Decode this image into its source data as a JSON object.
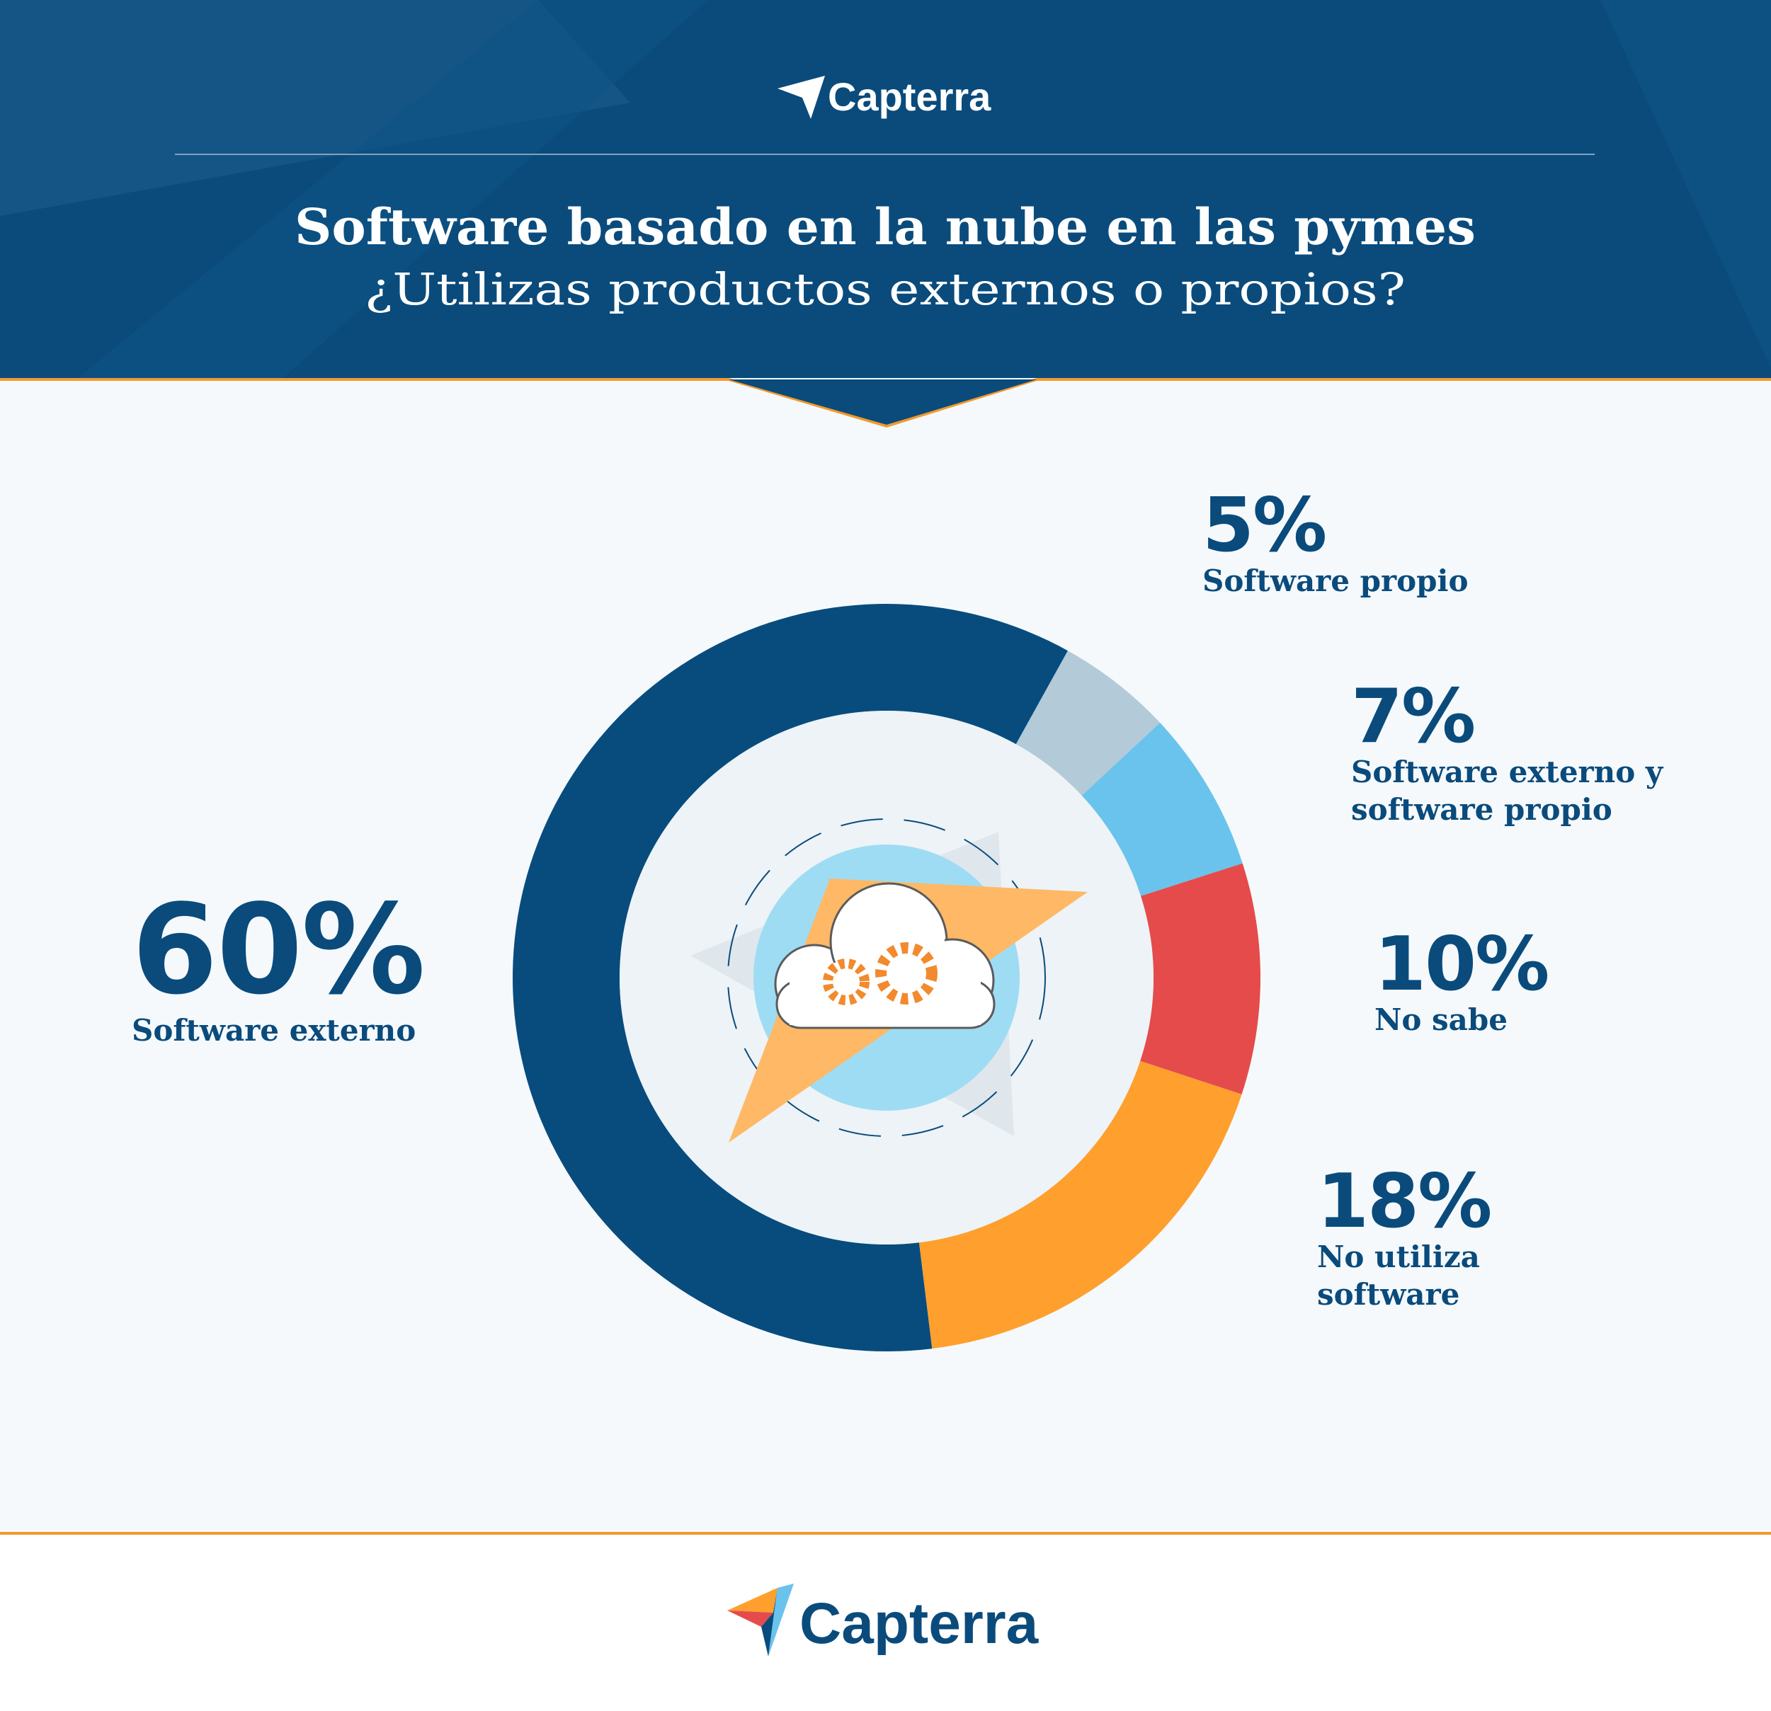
{
  "brand": "Capterra",
  "chart_data": {
    "type": "pie",
    "title": "Software basado en la nube en las pymes",
    "subtitle": "¿Utilizas productos externos o propios?",
    "categories": [
      "Software externo",
      "Software propio",
      "Software externo y software propio",
      "No sabe",
      "No utiliza software"
    ],
    "values": [
      60,
      5,
      7,
      10,
      18
    ],
    "value_labels": [
      "60%",
      "5%",
      "7%",
      "10%",
      "18%"
    ],
    "colors": [
      "#084c7e",
      "#b3cad9",
      "#6ac3ec",
      "#e54b4b",
      "#ff9f2e"
    ],
    "donut": true
  }
}
